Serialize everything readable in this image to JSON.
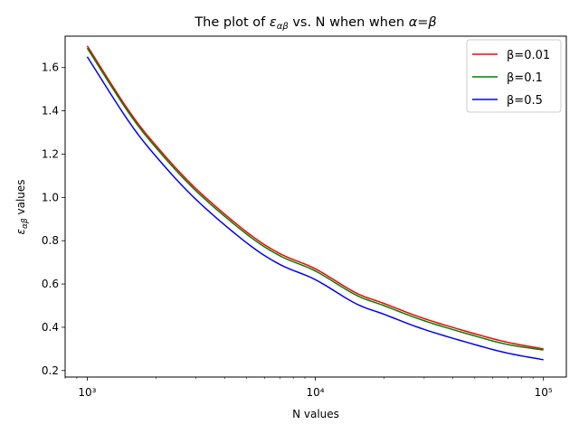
{
  "chart_data": {
    "type": "line",
    "title": "The plot of εαβ vs. N when when α=β",
    "xlabel": "N values",
    "ylabel": "εαβ values",
    "x_scale": "log",
    "xlim": [
      800,
      126000
    ],
    "ylim": [
      0.17,
      1.745
    ],
    "x_ticks": [
      1000,
      10000,
      100000
    ],
    "x_tick_labels": [
      "10³",
      "10⁴",
      "10⁵"
    ],
    "y_ticks": [
      0.2,
      0.4,
      0.6,
      0.8,
      1.0,
      1.2,
      1.4,
      1.6
    ],
    "y_tick_labels": [
      "0.2",
      "0.4",
      "0.6",
      "0.8",
      "1.0",
      "1.2",
      "1.4",
      "1.6"
    ],
    "legend_position": "top-right",
    "x": [
      1000,
      1500,
      2000,
      3000,
      5000,
      7000,
      10000,
      15000,
      20000,
      30000,
      50000,
      70000,
      100000
    ],
    "series": [
      {
        "name": "β=0.01",
        "color": "#ff0000",
        "values": [
          1.7,
          1.41,
          1.24,
          1.04,
          0.84,
          0.74,
          0.67,
          0.56,
          0.51,
          0.44,
          0.37,
          0.33,
          0.3
        ]
      },
      {
        "name": "β=0.1",
        "color": "#008000",
        "values": [
          1.69,
          1.4,
          1.23,
          1.03,
          0.83,
          0.73,
          0.66,
          0.55,
          0.5,
          0.43,
          0.36,
          0.32,
          0.295
        ]
      },
      {
        "name": "β=0.5",
        "color": "#0000ff",
        "values": [
          1.65,
          1.36,
          1.19,
          0.99,
          0.79,
          0.69,
          0.62,
          0.51,
          0.46,
          0.39,
          0.32,
          0.28,
          0.25
        ]
      }
    ]
  }
}
